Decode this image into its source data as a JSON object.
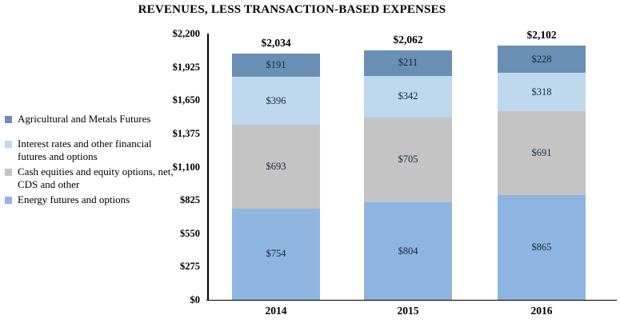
{
  "chart_data": {
    "type": "bar",
    "stacked": true,
    "title": "REVENUES, LESS TRANSACTION-BASED EXPENSES",
    "categories": [
      "2014",
      "2015",
      "2016"
    ],
    "series": [
      {
        "name": "Agricultural and Metals Futures",
        "color": "#6a8fb5",
        "values": [
          191,
          211,
          228
        ],
        "labels": [
          "$191",
          "$211",
          "$228"
        ]
      },
      {
        "name": "Interest rates and other financial futures and options",
        "color": "#bed8ee",
        "values": [
          396,
          342,
          318
        ],
        "labels": [
          "$396",
          "$342",
          "$318"
        ]
      },
      {
        "name": "Cash equities and equity options, net, CDS and other",
        "color": "#c4c4c4",
        "values": [
          693,
          705,
          691
        ],
        "labels": [
          "$693",
          "$705",
          "$691"
        ]
      },
      {
        "name": "Energy futures and options",
        "color": "#8db5e0",
        "values": [
          754,
          804,
          865
        ],
        "labels": [
          "$754",
          "$804",
          "$865"
        ]
      }
    ],
    "stack_order_bottom_to_top": [
      "Energy futures and options",
      "Cash equities and equity options, net, CDS and other",
      "Interest rates and other financial futures and options",
      "Agricultural and Metals Futures"
    ],
    "totals": [
      2034,
      2062,
      2102
    ],
    "total_labels": [
      "$2,034",
      "$2,062",
      "$2,102"
    ],
    "yticks": [
      0,
      275,
      550,
      825,
      1100,
      1375,
      1650,
      1925,
      2200
    ],
    "ytick_labels": [
      "$0",
      "$275",
      "$550",
      "$825",
      "$1,100",
      "$1,375",
      "$1,650",
      "$1,925",
      "$2,200"
    ],
    "ylim": [
      0,
      2200
    ],
    "grid": false,
    "legend_position": "left",
    "axis_color": "#000000",
    "segment_label_color": "#18293c"
  },
  "legend": {
    "items": [
      {
        "lines": [
          "Agricultural and Metals Futures"
        ],
        "color": "#6a8fb5"
      },
      {
        "lines": [
          "Interest rates and other financial",
          "futures and options"
        ],
        "color": "#bed8ee"
      },
      {
        "lines": [
          "Cash equities and equity options, net,",
          "CDS and other"
        ],
        "color": "#c4c4c4"
      },
      {
        "lines": [
          "Energy futures and options"
        ],
        "color": "#8db5e0"
      }
    ]
  }
}
